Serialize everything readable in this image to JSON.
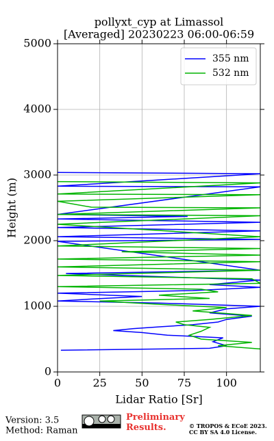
{
  "chart_data": {
    "type": "line",
    "orientation": "profile",
    "title": "pollyxt_cyp at Limassol",
    "subtitle": "[Averaged] 20230223 06:00-06:59",
    "x_label": "Lidar Ratio [Sr]",
    "y_label": "Height (m)",
    "xlim": [
      0,
      120
    ],
    "xticks": [
      0,
      25,
      50,
      75,
      100
    ],
    "ylim": [
      0,
      5000
    ],
    "yticks": [
      0,
      1000,
      2000,
      3000,
      4000,
      5000
    ],
    "grid": true,
    "legend": "upper right",
    "series": [
      {
        "name": "355 nm",
        "color": "#0000ff",
        "heights": [
          330,
          360,
          400,
          460,
          520,
          560,
          600,
          630,
          660,
          690,
          720,
          760,
          800,
          850,
          900,
          960,
          1000,
          1050,
          1080,
          1110,
          1150,
          1200,
          1240,
          1290,
          1330,
          1400,
          1500,
          1550,
          1990,
          2020,
          2060,
          2150,
          2200,
          2280,
          2330,
          2370,
          2400,
          2820,
          2830,
          3020,
          3040
        ],
        "values": [
          2,
          90,
          100,
          92,
          98,
          65,
          50,
          33,
          45,
          62,
          80,
          95,
          100,
          115,
          90,
          100,
          120,
          60,
          0,
          20,
          50,
          0,
          80,
          120,
          90,
          120,
          5,
          120,
          0,
          120,
          0,
          120,
          0,
          120,
          0,
          77,
          0,
          120,
          0,
          120,
          0
        ]
      },
      {
        "name": "532 nm",
        "color": "#00b400",
        "heights": [
          350,
          400,
          450,
          500,
          560,
          620,
          680,
          720,
          760,
          800,
          860,
          930,
          980,
          1030,
          1080,
          1120,
          1170,
          1220,
          1260,
          1300,
          1350,
          1420,
          1470,
          1550,
          1600,
          1680,
          1720,
          1780,
          1830,
          1880,
          1920,
          2060,
          2250,
          2380,
          2400,
          2500,
          2510,
          2600,
          2700,
          2710,
          2880,
          2900
        ],
        "values": [
          120,
          95,
          115,
          85,
          78,
          85,
          90,
          75,
          70,
          90,
          115,
          80,
          100,
          60,
          25,
          90,
          60,
          95,
          85,
          0,
          120,
          115,
          0,
          120,
          0,
          120,
          0,
          120,
          38,
          120,
          0,
          120,
          0,
          120,
          0,
          120,
          20,
          0,
          120,
          0,
          120,
          0
        ]
      }
    ]
  },
  "footer": {
    "version": "Version: 3.5",
    "method": "Method: Raman",
    "status": "Preliminary Results.",
    "copyright": "© TROPOS & ECoE 2023.",
    "license": "CC BY SA 4.0 License."
  }
}
